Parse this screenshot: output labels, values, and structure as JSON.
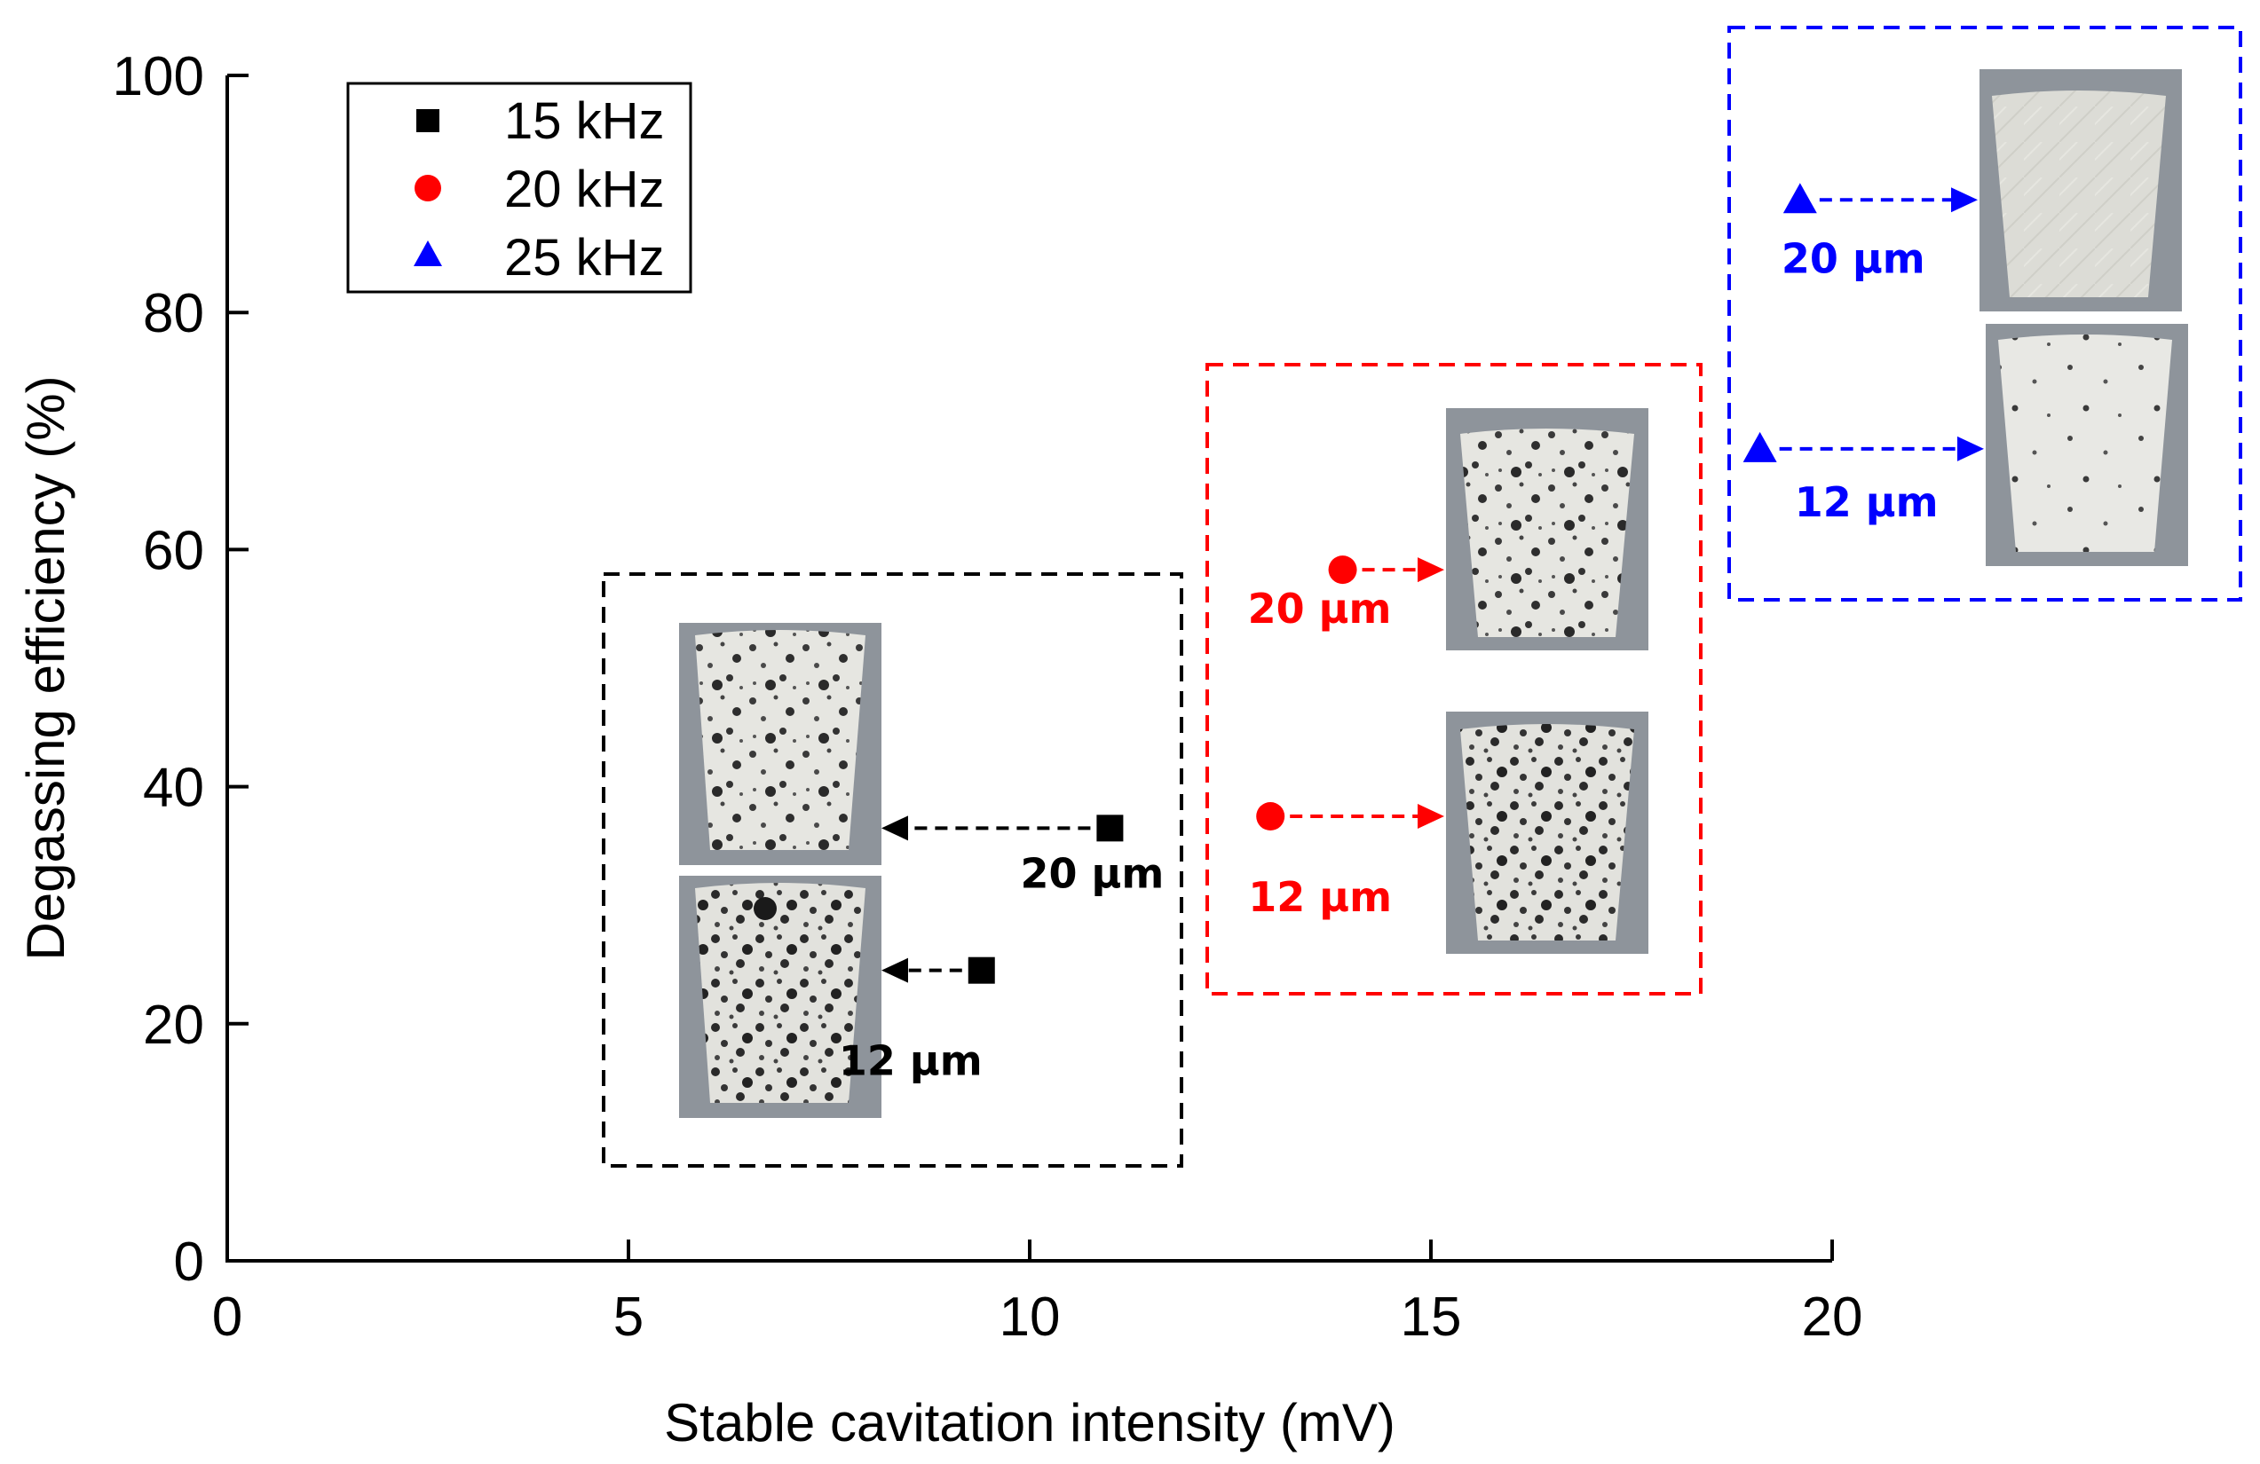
{
  "chart_data": {
    "type": "scatter",
    "title": "",
    "xlabel": "Stable cavitation intensity (mV)",
    "ylabel": "Degassing efficiency (%)",
    "xlim": [
      0,
      20
    ],
    "ylim": [
      0,
      100
    ],
    "xticks": [
      "0",
      "5",
      "10",
      "15",
      "20"
    ],
    "yticks": [
      "0",
      "20",
      "40",
      "60",
      "80",
      "100"
    ],
    "grid": false,
    "legend_position": "top-left",
    "series": [
      {
        "name": "15 kHz",
        "marker": "square",
        "color": "#000000",
        "points": [
          {
            "x": 9.4,
            "y": 24.5,
            "label": "12 μm"
          },
          {
            "x": 11.0,
            "y": 36.5,
            "label": "20 μm"
          }
        ]
      },
      {
        "name": "20 kHz",
        "marker": "circle",
        "color": "#ff0000",
        "points": [
          {
            "x": 13.0,
            "y": 37.5,
            "label": "12 μm"
          },
          {
            "x": 13.9,
            "y": 58.3,
            "label": "20 μm"
          }
        ]
      },
      {
        "name": "25 kHz",
        "marker": "triangle",
        "color": "#0000ff",
        "points": [
          {
            "x": 19.1,
            "y": 68.5,
            "label": "12 μm"
          },
          {
            "x": 19.6,
            "y": 89.5,
            "label": "20 μm"
          }
        ]
      }
    ],
    "annotations": "Dashed boxes group each frequency with photos of cast sample cross-sections; arrows point from each data point to its sample photo."
  }
}
